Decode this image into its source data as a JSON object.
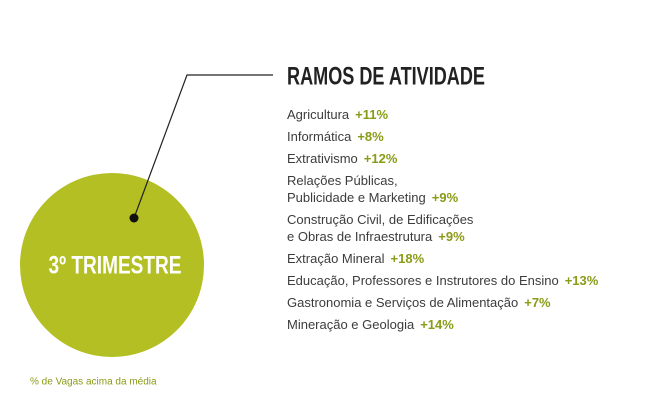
{
  "title": "RAMOS DE ATIVIDADE",
  "circle_label": "3º TRIMESTRE",
  "items": [
    {
      "lines": [
        "Agricultura"
      ],
      "value": "+11%"
    },
    {
      "lines": [
        "Informática"
      ],
      "value": "+8%"
    },
    {
      "lines": [
        "Extrativismo"
      ],
      "value": "+12%"
    },
    {
      "lines": [
        "Relações Públicas,",
        "Publicidade e  Marketing"
      ],
      "value": "+9%"
    },
    {
      "lines": [
        "Construção Civil, de Edificações",
        "e Obras de Infraestrutura"
      ],
      "value": "+9%"
    },
    {
      "lines": [
        "Extração Mineral"
      ],
      "value": "+18%"
    },
    {
      "lines": [
        "Educação, Professores e Instrutores do Ensino"
      ],
      "value": "+13%"
    },
    {
      "lines": [
        "Gastronomia e Serviços de Alimentação"
      ],
      "value": "+7%"
    },
    {
      "lines": [
        "Mineração e Geologia"
      ],
      "value": "+14%"
    }
  ],
  "footnote": "% de Vagas acima da média"
}
